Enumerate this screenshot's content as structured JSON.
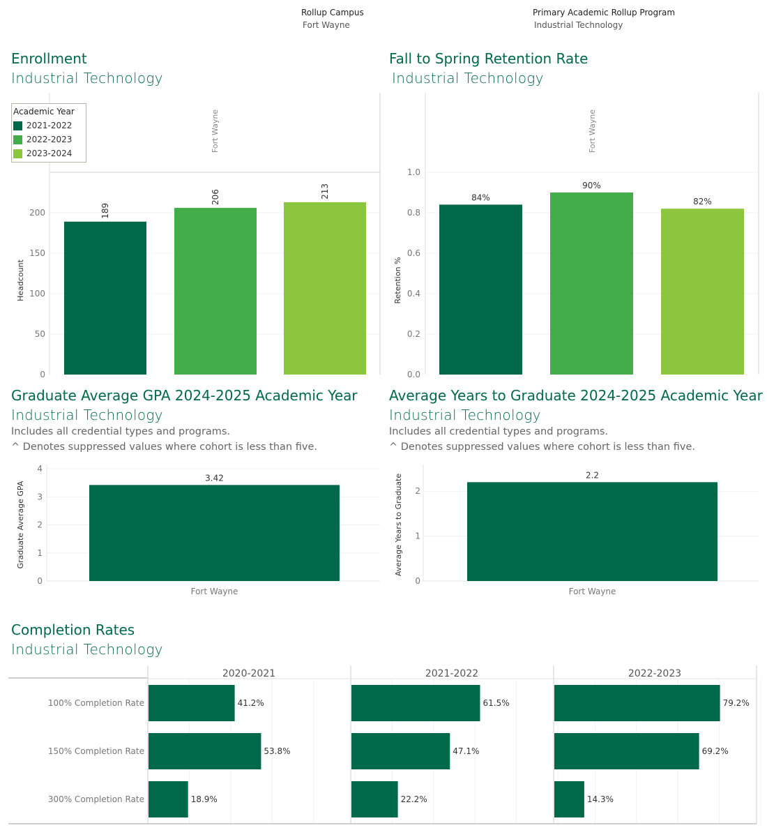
{
  "filters": {
    "campus_label": "Rollup Campus",
    "campus_value": "Fort Wayne",
    "program_label": "Primary Academic Rollup Program",
    "program_value": "Industrial Technology"
  },
  "colors": {
    "dark": "#00694a",
    "mid": "#43ae49",
    "light": "#8cc63f"
  },
  "enrollment": {
    "title": "Enrollment",
    "subtitle": "Industrial Technology",
    "legend_title": "Academic Year",
    "legend": [
      "2021-2022",
      "2022-2023",
      "2023-2024"
    ]
  },
  "retention": {
    "title": "Fall to Spring Retention Rate",
    "subtitle": "Industrial Technology"
  },
  "gpa": {
    "title": "Graduate Average GPA 2024-2025 Academic Year",
    "subtitle": "Industrial Technology",
    "note1": "Includes all credential types and programs.",
    "note2": "^ Denotes suppressed values where cohort is less than five."
  },
  "years": {
    "title": "Average Years to Graduate 2024-2025 Academic Year",
    "subtitle": "Industrial Technology",
    "note1": "Includes all credential types and programs.",
    "note2": "^ Denotes suppressed values where cohort is less than five."
  },
  "completion": {
    "title": "Completion Rates",
    "subtitle": "Industrial Technology"
  },
  "chart_data": [
    {
      "id": "enrollment",
      "type": "bar",
      "column_header": "Fort Wayne",
      "categories": [
        "2021-2022",
        "2022-2023",
        "2023-2024"
      ],
      "values": [
        189,
        206,
        213
      ],
      "labels": [
        "189",
        "206",
        "213"
      ],
      "ylabel": "Headcount",
      "ylim": [
        0,
        250
      ],
      "yticks": [
        0,
        50,
        100,
        150,
        200
      ],
      "colors": [
        "#00694a",
        "#43ae49",
        "#8cc63f"
      ]
    },
    {
      "id": "retention",
      "type": "bar",
      "column_header": "Fort Wayne",
      "categories": [
        "2021-2022",
        "2022-2023",
        "2023-2024"
      ],
      "values": [
        0.84,
        0.9,
        0.82
      ],
      "labels": [
        "84%",
        "90%",
        "82%"
      ],
      "ylabel": "Retention %",
      "ylim": [
        0,
        1.0
      ],
      "yticks": [
        "0.0",
        "0.2",
        "0.4",
        "0.6",
        "0.8",
        "1.0"
      ],
      "colors": [
        "#00694a",
        "#43ae49",
        "#8cc63f"
      ]
    },
    {
      "id": "gpa",
      "type": "bar",
      "categories": [
        "Fort Wayne"
      ],
      "values": [
        3.42
      ],
      "labels": [
        "3.42"
      ],
      "ylabel": "Graduate Average GPA",
      "ylim": [
        0,
        4
      ],
      "yticks": [
        0,
        1,
        2,
        3,
        4
      ]
    },
    {
      "id": "years",
      "type": "bar",
      "categories": [
        "Fort Wayne"
      ],
      "values": [
        2.2
      ],
      "labels": [
        "2.2"
      ],
      "ylabel": "Average Years to Graduate",
      "ylim": [
        0,
        2.5
      ],
      "yticks": [
        0,
        1,
        2
      ]
    },
    {
      "id": "completion",
      "type": "bar",
      "orientation": "horizontal",
      "panels": [
        "2020-2021",
        "2021-2022",
        "2022-2023"
      ],
      "rows": [
        "100% Completion Rate",
        "150% Completion Rate",
        "300% Completion Rate"
      ],
      "values": [
        [
          41.2,
          61.5,
          79.2
        ],
        [
          53.8,
          47.1,
          69.2
        ],
        [
          18.9,
          22.2,
          14.3
        ]
      ],
      "labels": [
        [
          "41.2%",
          "61.5%",
          "79.2%"
        ],
        [
          "53.8%",
          "47.1%",
          "69.2%"
        ],
        [
          "18.9%",
          "22.2%",
          "14.3%"
        ]
      ],
      "xlim": [
        0,
        100
      ]
    }
  ]
}
